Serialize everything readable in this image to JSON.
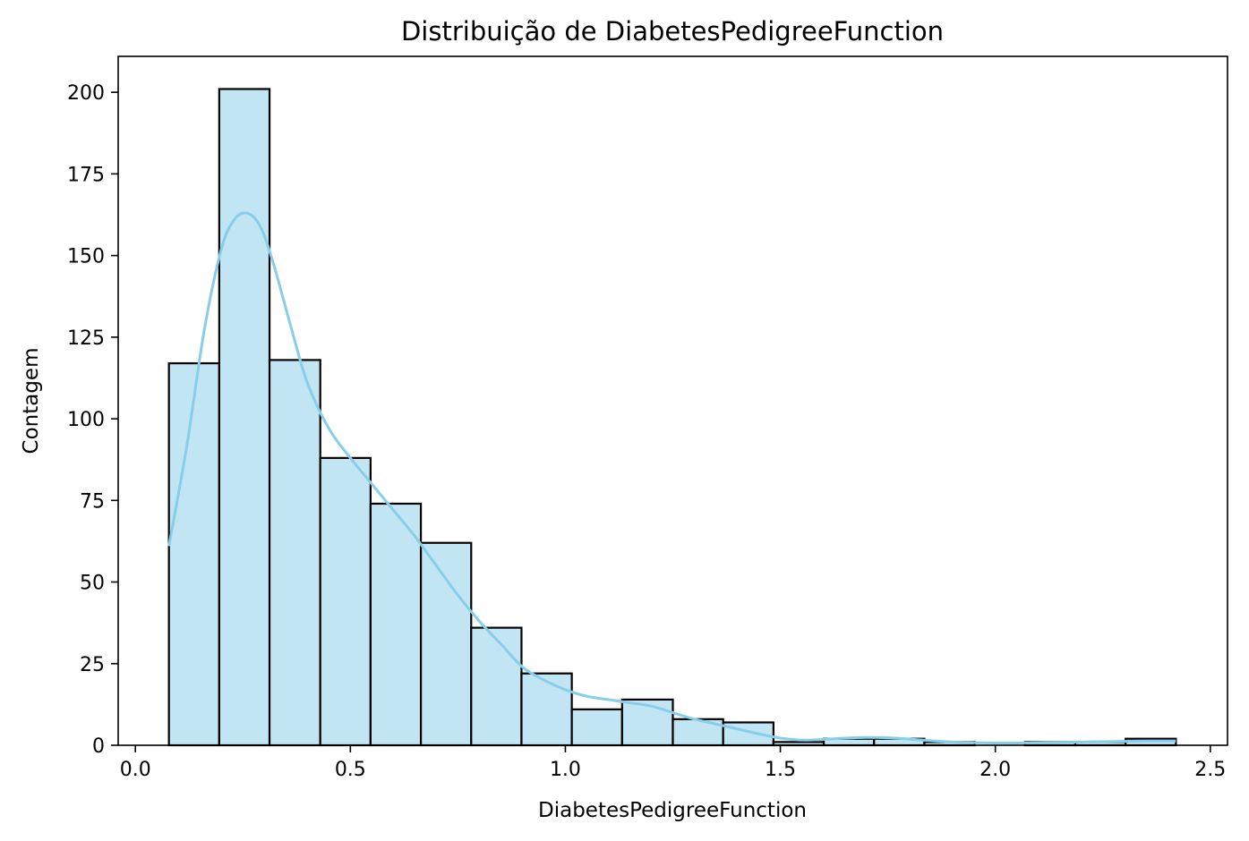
{
  "chart_data": {
    "type": "bar",
    "title": "Distribuição de DiabetesPedigreeFunction",
    "xlabel": "DiabetesPedigreeFunction",
    "ylabel": "Contagem",
    "xlim": [
      -0.04,
      2.54
    ],
    "ylim": [
      0,
      211
    ],
    "xticks": [
      0.0,
      0.5,
      1.0,
      1.5,
      2.0,
      2.5
    ],
    "xtick_labels": [
      "0.0",
      "0.5",
      "1.0",
      "1.5",
      "2.0",
      "2.5"
    ],
    "yticks": [
      0,
      25,
      50,
      75,
      100,
      125,
      150,
      175,
      200
    ],
    "ytick_labels": [
      "0",
      "25",
      "50",
      "75",
      "100",
      "125",
      "150",
      "175",
      "200"
    ],
    "grid": false,
    "bins": [
      {
        "x0": 0.078,
        "x1": 0.195,
        "count": 117
      },
      {
        "x0": 0.195,
        "x1": 0.312,
        "count": 201
      },
      {
        "x0": 0.312,
        "x1": 0.43,
        "count": 118
      },
      {
        "x0": 0.43,
        "x1": 0.547,
        "count": 88
      },
      {
        "x0": 0.547,
        "x1": 0.664,
        "count": 74
      },
      {
        "x0": 0.664,
        "x1": 0.781,
        "count": 62
      },
      {
        "x0": 0.781,
        "x1": 0.898,
        "count": 36
      },
      {
        "x0": 0.898,
        "x1": 1.015,
        "count": 22
      },
      {
        "x0": 1.015,
        "x1": 1.132,
        "count": 11
      },
      {
        "x0": 1.132,
        "x1": 1.25,
        "count": 14
      },
      {
        "x0": 1.25,
        "x1": 1.367,
        "count": 8
      },
      {
        "x0": 1.367,
        "x1": 1.484,
        "count": 7
      },
      {
        "x0": 1.484,
        "x1": 1.601,
        "count": 1
      },
      {
        "x0": 1.601,
        "x1": 1.718,
        "count": 2
      },
      {
        "x0": 1.718,
        "x1": 1.835,
        "count": 2
      },
      {
        "x0": 1.835,
        "x1": 1.952,
        "count": 1
      },
      {
        "x0": 1.952,
        "x1": 2.069,
        "count": 0
      },
      {
        "x0": 2.069,
        "x1": 2.186,
        "count": 1
      },
      {
        "x0": 2.186,
        "x1": 2.303,
        "count": 1
      },
      {
        "x0": 2.303,
        "x1": 2.42,
        "count": 2
      }
    ],
    "kde": {
      "x": [
        0.078,
        0.12,
        0.16,
        0.2,
        0.23,
        0.26,
        0.29,
        0.32,
        0.36,
        0.4,
        0.45,
        0.5,
        0.55,
        0.6,
        0.65,
        0.7,
        0.75,
        0.8,
        0.85,
        0.9,
        0.95,
        1.0,
        1.05,
        1.1,
        1.15,
        1.2,
        1.25,
        1.3,
        1.35,
        1.4,
        1.45,
        1.5,
        1.55,
        1.6,
        1.65,
        1.7,
        1.75,
        1.8,
        1.85,
        1.9,
        1.95,
        2.0,
        2.05,
        2.1,
        2.15,
        2.2,
        2.25,
        2.3,
        2.35,
        2.42
      ],
      "y": [
        61,
        92,
        127,
        152,
        161,
        163,
        159,
        148,
        129,
        111,
        97,
        88,
        80,
        72,
        64,
        55,
        46,
        38,
        31,
        24,
        20,
        17,
        15,
        14,
        13,
        12,
        10,
        8,
        6.5,
        5,
        3.5,
        2.2,
        1.6,
        1.8,
        2.2,
        2.4,
        2.3,
        1.9,
        1.4,
        1.0,
        0.8,
        0.7,
        0.7,
        0.8,
        0.9,
        1.0,
        1.1,
        1.2,
        1.3,
        1.3
      ]
    },
    "colors": {
      "bar_fill": "#c2e5f4",
      "bar_edge": "#000000",
      "kde_line": "#87ceeb"
    }
  }
}
